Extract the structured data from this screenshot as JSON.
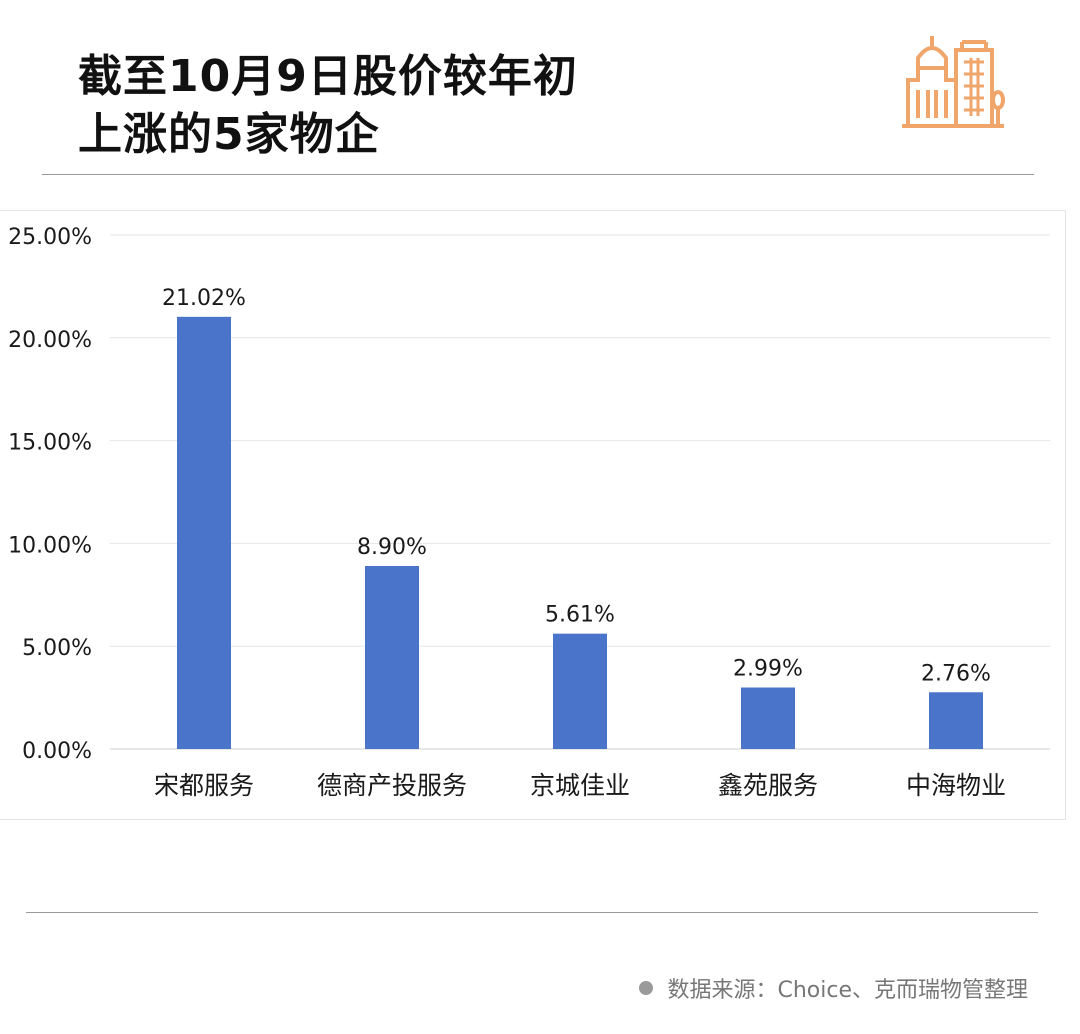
{
  "title": {
    "line1": "截至10月9日股价较年初",
    "line2": "上涨的5家物企"
  },
  "logo": {
    "icon": "city-buildings-icon",
    "color": "#f0a56b"
  },
  "footer": {
    "source": "数据来源：Choice、克而瑞物管整理"
  },
  "chart_data": {
    "type": "bar",
    "categories": [
      "宋都服务",
      "德商产投服务",
      "京城佳业",
      "鑫苑服务",
      "中海物业"
    ],
    "values": [
      21.02,
      8.9,
      5.61,
      2.99,
      2.76
    ],
    "value_labels": [
      "21.02%",
      "8.90%",
      "5.61%",
      "2.99%",
      "2.76%"
    ],
    "y_ticks": [
      0,
      5,
      10,
      15,
      20,
      25
    ],
    "y_tick_labels": [
      "0.00%",
      "5.00%",
      "10.00%",
      "15.00%",
      "20.00%",
      "25.00%"
    ],
    "ylim": [
      0,
      25
    ],
    "grid": true,
    "legend": "none",
    "bar_color": "#4a74c9",
    "title": "",
    "xlabel": "",
    "ylabel": ""
  }
}
